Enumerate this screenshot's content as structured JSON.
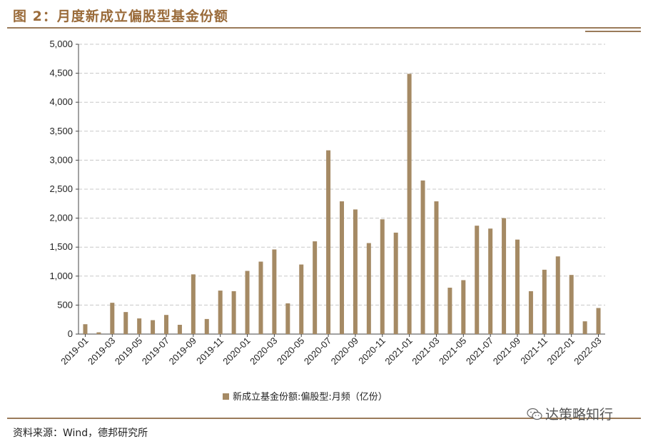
{
  "figure": {
    "title": "图 2：月度新成立偏股型基金份额",
    "source": "资料来源：Wind，德邦研究所",
    "watermark": "达策略知行",
    "watermark_icon": "wechat-icon"
  },
  "colors": {
    "bar": "#a58a64",
    "accent": "#9a6b3a",
    "grid": "#c8c8c8"
  },
  "chart_data": {
    "type": "bar",
    "title": "",
    "xlabel": "",
    "ylabel": "",
    "ylim": [
      0,
      5000
    ],
    "yticks": [
      0,
      500,
      1000,
      1500,
      2000,
      2500,
      3000,
      3500,
      4000,
      4500,
      5000
    ],
    "ytick_labels": [
      "0",
      "500",
      "1,000",
      "1,500",
      "2,000",
      "2,500",
      "3,000",
      "3,500",
      "4,000",
      "4,500",
      "5,000"
    ],
    "grid": true,
    "legend_position": "bottom-center",
    "categories": [
      "2019-01",
      "2019-02",
      "2019-03",
      "2019-04",
      "2019-05",
      "2019-06",
      "2019-07",
      "2019-08",
      "2019-09",
      "2019-10",
      "2019-11",
      "2019-12",
      "2020-01",
      "2020-02",
      "2020-03",
      "2020-04",
      "2020-05",
      "2020-06",
      "2020-07",
      "2020-08",
      "2020-09",
      "2020-10",
      "2020-11",
      "2020-12",
      "2021-01",
      "2021-02",
      "2021-03",
      "2021-04",
      "2021-05",
      "2021-06",
      "2021-07",
      "2021-08",
      "2021-09",
      "2021-10",
      "2021-11",
      "2021-12",
      "2022-01",
      "2022-02",
      "2022-03"
    ],
    "xtick_labels": [
      "2019-01",
      "",
      "2019-03",
      "",
      "2019-05",
      "",
      "2019-07",
      "",
      "2019-09",
      "",
      "2019-11",
      "",
      "2020-01",
      "",
      "2020-03",
      "",
      "2020-05",
      "",
      "2020-07",
      "",
      "2020-09",
      "",
      "2020-11",
      "",
      "2021-01",
      "",
      "2021-03",
      "",
      "2021-05",
      "",
      "2021-07",
      "",
      "2021-09",
      "",
      "2021-11",
      "",
      "2022-01",
      "",
      "2022-03"
    ],
    "series": [
      {
        "name": "新成立基金份额:偏股型:月频（亿份）",
        "values": [
          170,
          30,
          540,
          380,
          270,
          240,
          330,
          160,
          1030,
          260,
          750,
          740,
          1090,
          1250,
          1460,
          530,
          1200,
          1600,
          3170,
          2290,
          2150,
          1570,
          1980,
          1750,
          4490,
          2650,
          2290,
          800,
          930,
          1870,
          1820,
          2000,
          1630,
          740,
          1110,
          1340,
          1020,
          220,
          450
        ]
      }
    ]
  }
}
